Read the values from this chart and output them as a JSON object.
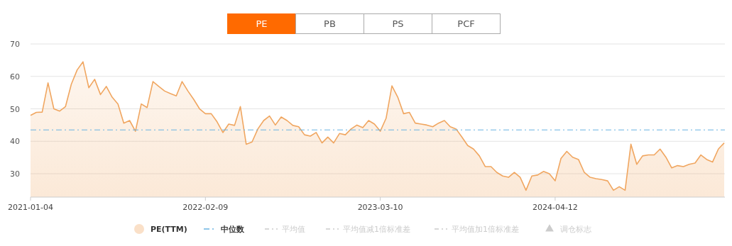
{
  "chart_data": {
    "type": "area",
    "annotations": [
      "PE",
      "PB",
      "PS",
      "PCF",
      "平均值",
      "平均值减1倍标准差",
      "平均值加1倍标准差",
      "调仓标志"
    ],
    "categories": [
      "2021-01-04",
      null,
      null,
      null,
      null,
      null,
      null,
      null,
      null,
      null,
      null,
      null,
      null,
      null,
      null,
      null,
      null,
      null,
      null,
      null,
      null,
      null,
      null,
      null,
      null,
      null,
      null,
      null,
      null,
      null,
      "2022-02-09",
      null,
      null,
      null,
      null,
      null,
      null,
      null,
      null,
      null,
      null,
      null,
      null,
      null,
      null,
      null,
      null,
      null,
      null,
      null,
      null,
      null,
      null,
      null,
      null,
      null,
      null,
      null,
      null,
      null,
      "2023-03-10",
      null,
      null,
      null,
      null,
      null,
      null,
      null,
      null,
      null,
      null,
      null,
      null,
      null,
      null,
      null,
      null,
      null,
      null,
      null,
      null,
      null,
      null,
      null,
      null,
      null,
      null,
      null,
      null,
      null,
      "2024-04-12",
      null,
      null,
      null,
      null,
      null,
      null,
      null,
      null,
      null,
      null,
      null,
      null,
      null,
      null,
      null,
      null,
      null,
      null,
      null,
      null,
      null,
      null,
      null,
      null,
      null,
      null,
      null,
      null,
      null
    ],
    "series": [
      {
        "name": "PE(TTM)",
        "color": "#f0a660",
        "values": [
          48,
          48.9,
          49,
          58,
          50,
          49.3,
          50.7,
          57.6,
          62,
          64.5,
          56.5,
          59.1,
          54.4,
          56.9,
          53.6,
          51.5,
          45.6,
          46.4,
          43.1,
          51.5,
          50.4,
          58.4,
          56.9,
          55.5,
          54.7,
          54,
          58.4,
          55.5,
          52.9,
          50,
          48.5,
          48.5,
          46,
          42.7,
          45.3,
          44.9,
          50.7,
          39.1,
          39.8,
          43.8,
          46.4,
          47.8,
          45,
          47.5,
          46.4,
          44.9,
          44.5,
          42,
          41.6,
          42.7,
          39.5,
          41.3,
          39.5,
          42.4,
          42,
          43.8,
          45,
          44.2,
          46.4,
          45.3,
          43.1,
          47.1,
          57.1,
          53.6,
          48.5,
          48.9,
          45.6,
          45.3,
          45,
          44.5,
          45.6,
          46.4,
          44.5,
          43.8,
          41.3,
          38.7,
          37.6,
          35.5,
          32.2,
          32.2,
          30.4,
          29.3,
          28.9,
          30.4,
          28.9,
          24.9,
          29.3,
          29.6,
          30.7,
          30,
          27.8,
          34.7,
          36.9,
          35.1,
          34.4,
          30.4,
          28.9,
          28.5,
          28.2,
          27.8,
          24.9,
          26,
          24.9,
          39.1,
          32.9,
          35.5,
          35.8,
          35.8,
          37.6,
          35.1,
          31.8,
          32.5,
          32.2,
          32.9,
          33.3,
          35.8,
          34.4,
          33.6,
          37.6,
          39.5
        ]
      }
    ],
    "ref_lines": [
      {
        "axis": "y",
        "value": 43.5,
        "label": "中位数",
        "color": "#6ab4e2",
        "line_style": "dashed"
      }
    ],
    "ylim": [
      22.8,
      70
    ],
    "yticks": [
      30,
      40,
      50,
      60,
      70
    ],
    "grid": "y",
    "legend": "bottom"
  }
}
